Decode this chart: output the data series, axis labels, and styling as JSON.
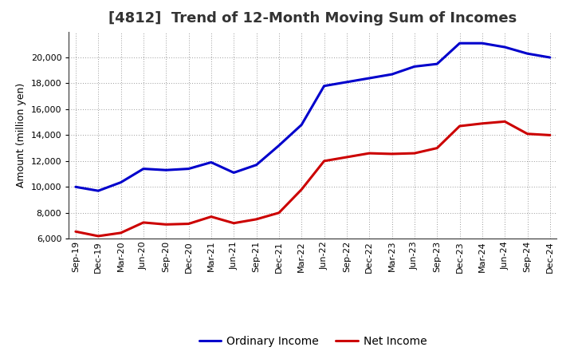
{
  "title": "[4812]  Trend of 12-Month Moving Sum of Incomes",
  "ylabel": "Amount (million yen)",
  "background_color": "#ffffff",
  "plot_bg_color": "#ffffff",
  "grid_color": "#999999",
  "ylim": [
    6000,
    22000
  ],
  "yticks": [
    6000,
    8000,
    10000,
    12000,
    14000,
    16000,
    18000,
    20000
  ],
  "x_labels": [
    "Sep-19",
    "Dec-19",
    "Mar-20",
    "Jun-20",
    "Sep-20",
    "Dec-20",
    "Mar-21",
    "Jun-21",
    "Sep-21",
    "Dec-21",
    "Mar-22",
    "Jun-22",
    "Sep-22",
    "Dec-22",
    "Mar-23",
    "Jun-23",
    "Sep-23",
    "Dec-23",
    "Mar-24",
    "Jun-24",
    "Sep-24",
    "Dec-24"
  ],
  "ordinary_income": [
    10000,
    9700,
    10350,
    11400,
    11300,
    11400,
    11900,
    11100,
    11700,
    13200,
    14800,
    17800,
    18100,
    18400,
    18700,
    19300,
    19500,
    21100,
    21100,
    20800,
    20300,
    20000
  ],
  "net_income": [
    6550,
    6200,
    6450,
    7250,
    7100,
    7150,
    7700,
    7200,
    7500,
    8000,
    9800,
    12000,
    12300,
    12600,
    12550,
    12600,
    13000,
    14700,
    14900,
    15050,
    14100,
    14000
  ],
  "ordinary_color": "#0000cc",
  "net_color": "#cc0000",
  "line_width": 2.2,
  "title_fontsize": 13,
  "tick_fontsize": 8,
  "ylabel_fontsize": 9,
  "legend_fontsize": 10
}
